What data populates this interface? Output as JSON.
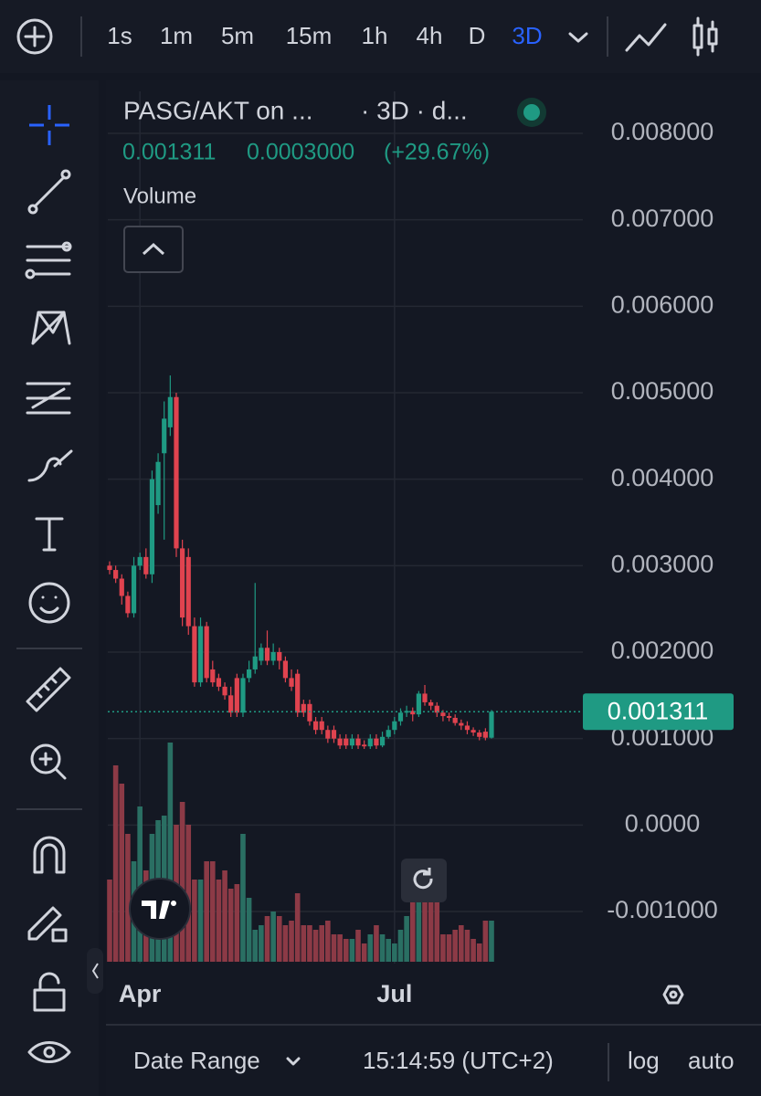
{
  "toolbar": {
    "intervals": [
      "1s",
      "1m",
      "5m",
      "15m",
      "1h",
      "4h",
      "D",
      "3D"
    ],
    "selected": 7
  },
  "header": {
    "symbol": "PASG/AKT on ...",
    "interval": "· 3D · d...",
    "price": "0.001311",
    "change": "0.0003000",
    "change_percent": "(+29.67%)",
    "study": "Volume"
  },
  "footer": {
    "date_range": "Date Range",
    "time": "15:14:59 (UTC+2)",
    "log": "log",
    "auto": "auto"
  },
  "chart_data": {
    "type": "candlestick",
    "categories": [
      null,
      null,
      null,
      null,
      null,
      "Apr",
      null,
      null,
      null,
      null,
      null,
      null,
      null,
      null,
      null,
      null,
      null,
      null,
      null,
      null,
      null,
      null,
      null,
      null,
      null,
      null,
      null,
      null,
      null,
      null,
      null,
      null,
      null,
      null,
      null,
      null,
      null,
      null,
      null,
      null,
      null,
      null,
      null,
      null,
      null,
      null,
      null,
      "Jul",
      null,
      null,
      null,
      null,
      null,
      null,
      null,
      null,
      null,
      null,
      null,
      null,
      null,
      null,
      null,
      null
    ],
    "open": [
      0.003,
      0.00295,
      0.00285,
      0.00265,
      0.00245,
      0.003,
      0.0031,
      0.0029,
      0.0037,
      0.0043,
      0.0046,
      0.00495,
      0.0032,
      0.0031,
      0.0023,
      0.00165,
      0.0023,
      0.0018,
      0.0017,
      0.0016,
      0.0015,
      0.0017,
      0.0013,
      0.0017,
      0.0018,
      0.0019,
      0.00205,
      0.0019,
      0.002,
      0.0019,
      0.0017,
      0.00175,
      0.0014,
      0.0014,
      0.0012,
      0.0012,
      0.0011,
      0.0011,
      0.001,
      0.001,
      0.00092,
      0.001,
      0.00093,
      0.00091,
      0.001,
      0.00092,
      0.00102,
      0.0011,
      0.0012,
      0.0013,
      0.00132,
      0.00128,
      0.00152,
      0.00142,
      0.00138,
      0.0013,
      0.00126,
      0.00124,
      0.00118,
      0.00115,
      0.0011,
      0.00107,
      0.00108,
      0.00101
    ],
    "high": [
      0.00305,
      0.003,
      0.0029,
      0.0027,
      0.0031,
      0.00315,
      0.0032,
      0.0041,
      0.0043,
      0.0049,
      0.0052,
      0.005,
      0.0033,
      0.0032,
      0.0024,
      0.0024,
      0.00235,
      0.0019,
      0.00175,
      0.00165,
      0.0016,
      0.00175,
      0.00175,
      0.0019,
      0.0028,
      0.0021,
      0.00225,
      0.0021,
      0.00205,
      0.00195,
      0.0018,
      0.0018,
      0.00145,
      0.00145,
      0.00125,
      0.00125,
      0.00115,
      0.00115,
      0.00105,
      0.00105,
      0.00105,
      0.00105,
      0.00098,
      0.00105,
      0.00105,
      0.00108,
      0.00115,
      0.00125,
      0.00135,
      0.00138,
      0.00136,
      0.00155,
      0.00162,
      0.00145,
      0.00142,
      0.00133,
      0.0013,
      0.00128,
      0.00122,
      0.0012,
      0.00113,
      0.0011,
      0.00112,
      0.00133
    ],
    "low": [
      0.0029,
      0.0028,
      0.00255,
      0.0024,
      0.0024,
      0.00295,
      0.00285,
      0.0028,
      0.0036,
      0.0033,
      0.0045,
      0.0031,
      0.0023,
      0.0022,
      0.0016,
      0.0016,
      0.00165,
      0.0016,
      0.00155,
      0.00145,
      0.00125,
      0.00125,
      0.00125,
      0.00165,
      0.00175,
      0.00185,
      0.00185,
      0.00185,
      0.0018,
      0.00165,
      0.00155,
      0.00125,
      0.00125,
      0.00115,
      0.00105,
      0.00105,
      0.00095,
      0.00095,
      0.00088,
      0.00088,
      0.00088,
      0.00088,
      0.00088,
      0.00088,
      0.00088,
      0.0009,
      0.001,
      0.00105,
      0.00115,
      0.00125,
      0.0012,
      0.00125,
      0.00138,
      0.00133,
      0.00125,
      0.0012,
      0.0012,
      0.00115,
      0.0011,
      0.00105,
      0.00103,
      0.00098,
      0.00098,
      0.001
    ],
    "close": [
      0.00295,
      0.00285,
      0.00265,
      0.00245,
      0.003,
      0.0031,
      0.0029,
      0.004,
      0.0042,
      0.0047,
      0.00495,
      0.0032,
      0.0024,
      0.0023,
      0.00165,
      0.0023,
      0.0017,
      0.00165,
      0.0016,
      0.0015,
      0.0013,
      0.0013,
      0.0017,
      0.0018,
      0.00195,
      0.00205,
      0.0019,
      0.002,
      0.0019,
      0.0017,
      0.0016,
      0.0013,
      0.0013,
      0.0012,
      0.0011,
      0.0011,
      0.001,
      0.001,
      0.00092,
      0.00092,
      0.001,
      0.00092,
      0.00091,
      0.001,
      0.00092,
      0.00102,
      0.0011,
      0.0012,
      0.0013,
      0.00132,
      0.00128,
      0.00152,
      0.00142,
      0.00138,
      0.0013,
      0.00126,
      0.00124,
      0.00118,
      0.00115,
      0.0011,
      0.00107,
      0.00102,
      0.00101,
      0.001311
    ],
    "volume": [
      90,
      215,
      195,
      140,
      110,
      170,
      100,
      140,
      155,
      160,
      240,
      150,
      175,
      150,
      90,
      90,
      110,
      110,
      90,
      100,
      80,
      85,
      140,
      70,
      35,
      40,
      50,
      55,
      50,
      40,
      45,
      75,
      40,
      40,
      35,
      40,
      45,
      30,
      30,
      25,
      25,
      35,
      20,
      30,
      40,
      30,
      25,
      20,
      35,
      50,
      70,
      100,
      80,
      65,
      70,
      30,
      30,
      35,
      40,
      35,
      25,
      20,
      45,
      45
    ],
    "up_color": "#1f9a83",
    "down_color": "#e0434f",
    "up_volume_color": "#2a6f63",
    "down_volume_color": "#8c3a46",
    "ylim": [
      -0.00155,
      0.0085
    ],
    "yticks": [
      {
        "value": 0.008,
        "label": "0.008000"
      },
      {
        "value": 0.007,
        "label": "0.007000"
      },
      {
        "value": 0.006,
        "label": "0.006000"
      },
      {
        "value": 0.005,
        "label": "0.005000"
      },
      {
        "value": 0.004,
        "label": "0.004000"
      },
      {
        "value": 0.003,
        "label": "0.003000"
      },
      {
        "value": 0.002,
        "label": "0.002000"
      },
      {
        "value": 0.001,
        "label": "0.001000"
      },
      {
        "value": 0,
        "label": "0.0000"
      },
      {
        "value": -0.001,
        "label": "-0.001000"
      }
    ],
    "last_price": {
      "value": 0.001311,
      "label": "0.001311"
    },
    "grid": true
  }
}
